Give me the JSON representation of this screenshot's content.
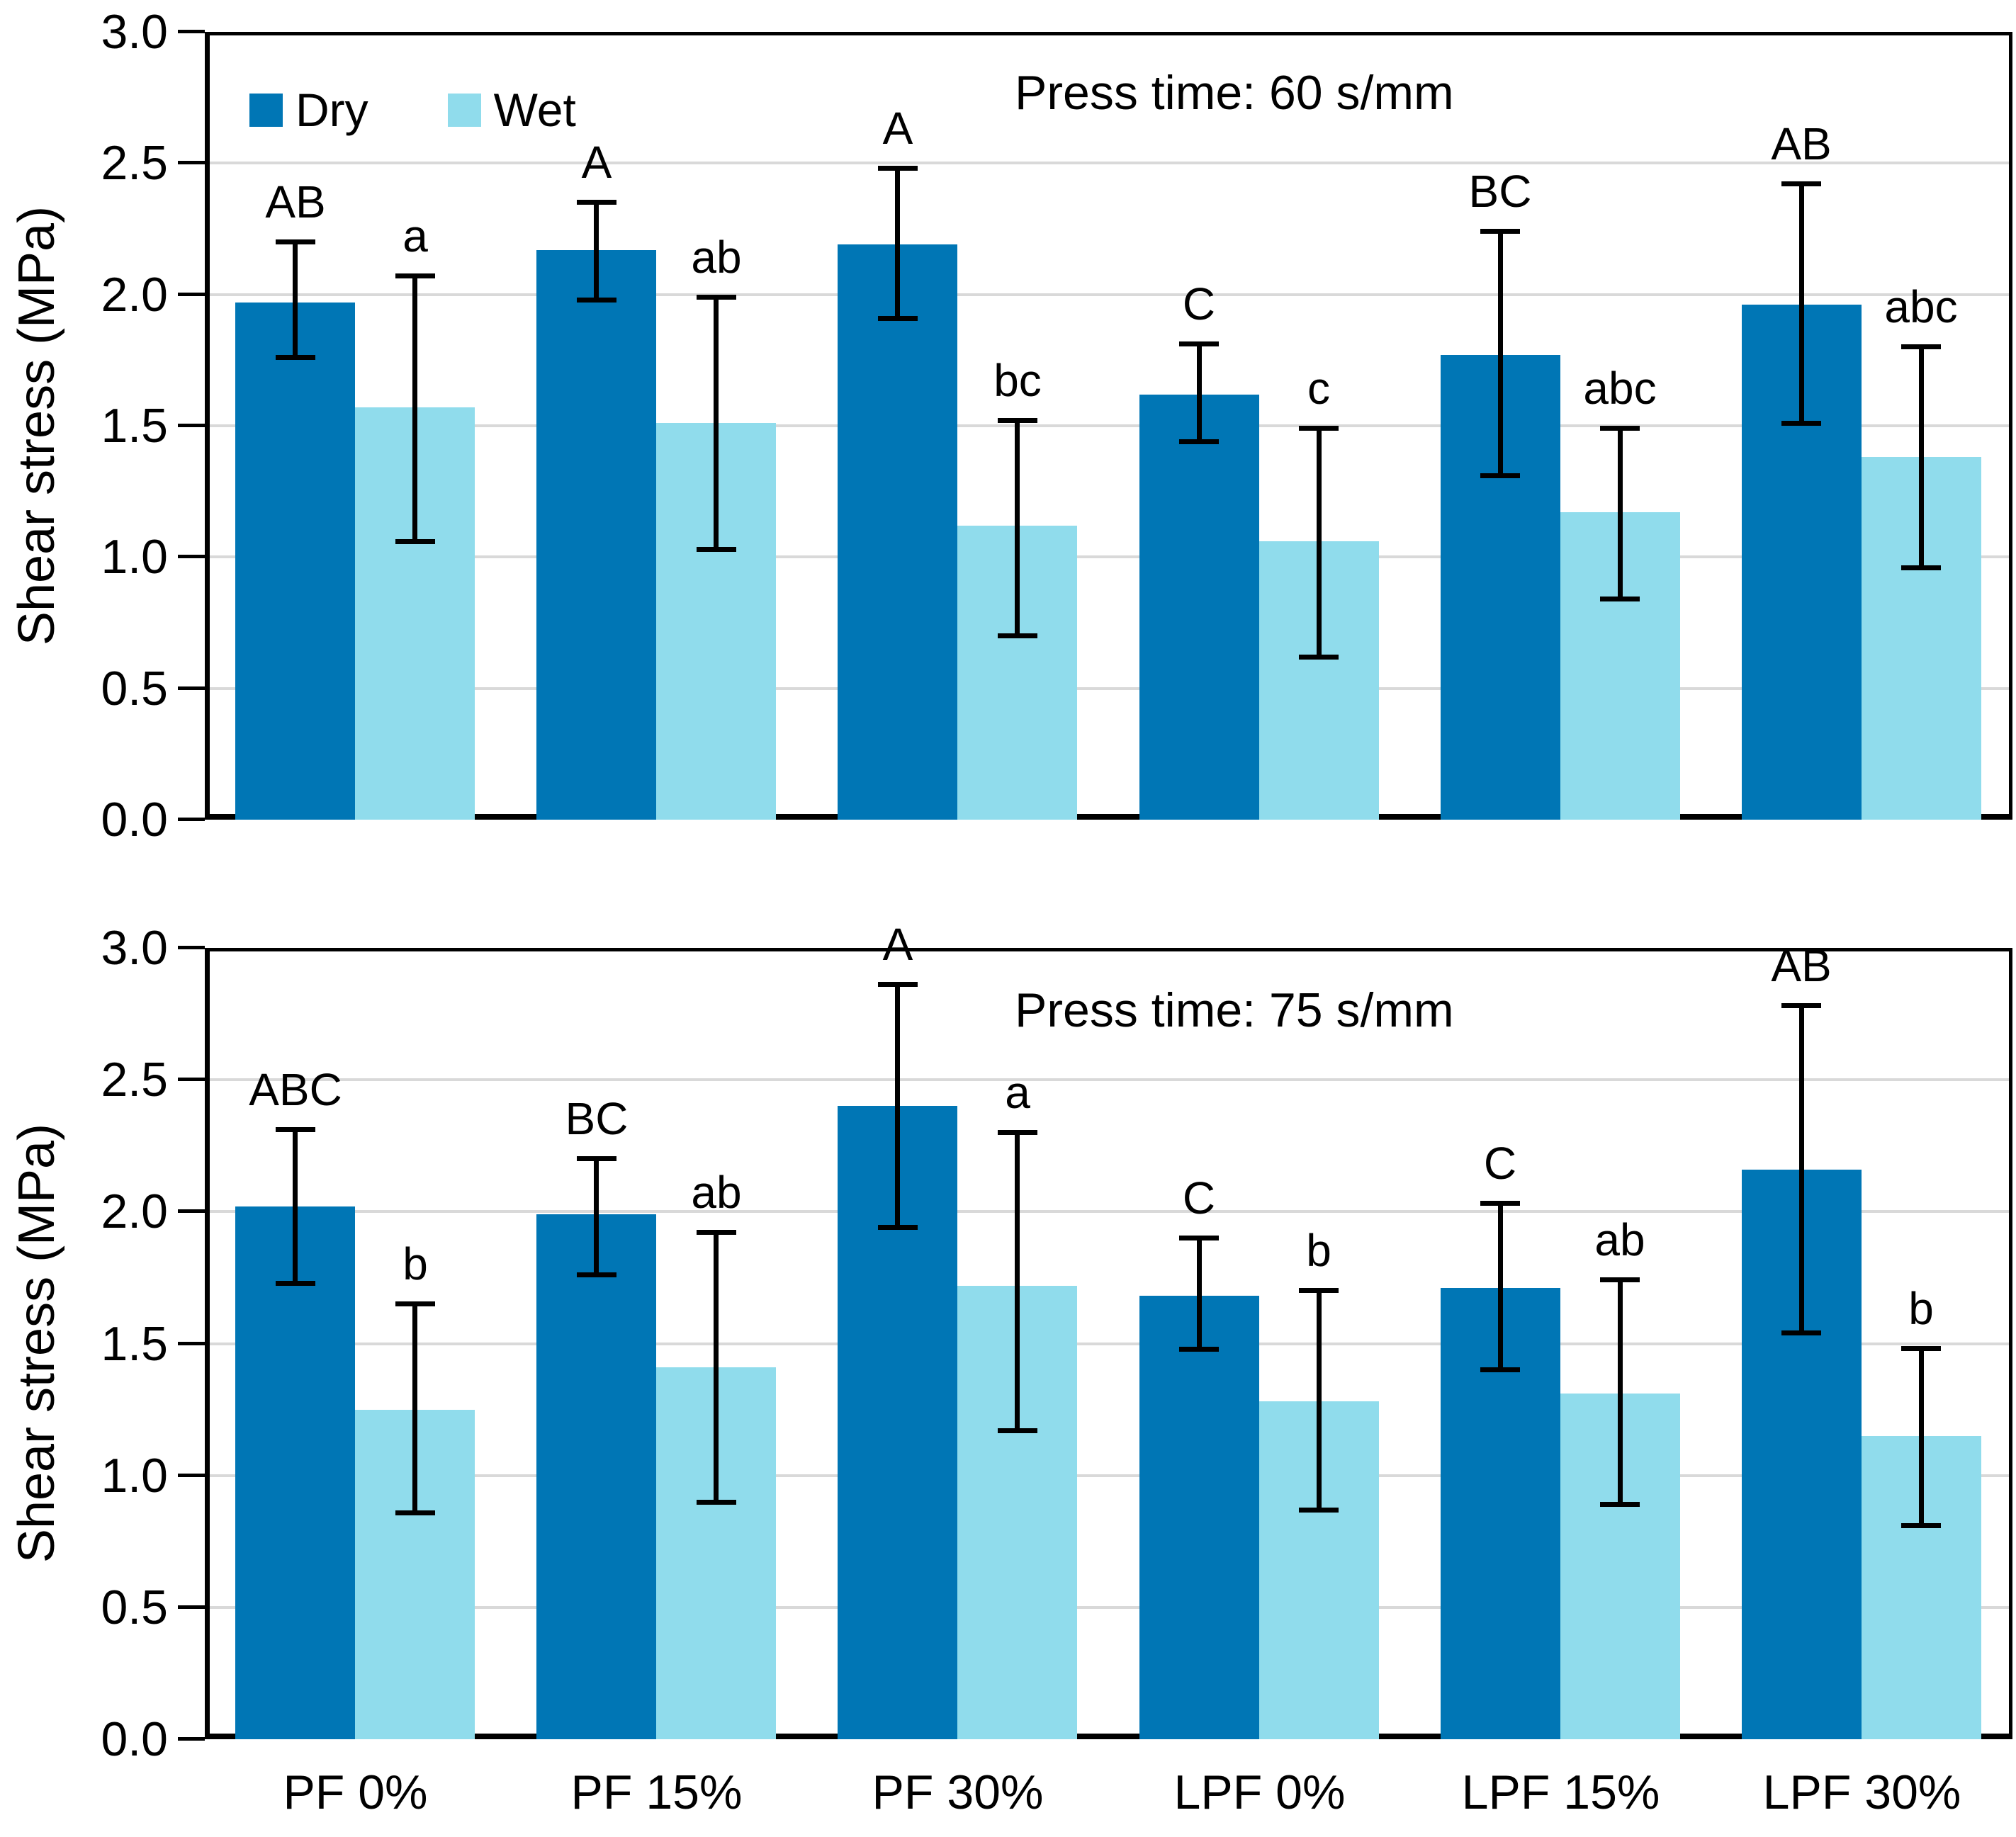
{
  "figure": {
    "ylabel": "Shear stress (MPa)",
    "legend": {
      "dry": "Dry",
      "wet": "Wet"
    },
    "colors": {
      "dry": "#0076B5",
      "wet": "#90DCEC",
      "gridline": "#D9D9D9",
      "axis": "#000000",
      "background": "#FFFFFF"
    },
    "yticks": [
      "3.0",
      "2.5",
      "2.0",
      "1.5",
      "1.0",
      "0.5",
      "0.0"
    ]
  },
  "chart_data": [
    {
      "type": "bar",
      "title": "Press time: 60 s/mm",
      "ylabel": "Shear stress (MPa)",
      "xlabel": "",
      "ylim": [
        0,
        3
      ],
      "grid": "horizontal",
      "legend_position": "top-left-inside",
      "categories": [
        "PF 0%",
        "PF 15%",
        "PF 30%",
        "LPF 0%",
        "LPF 15%",
        "LPF 30%"
      ],
      "series": [
        {
          "name": "Dry",
          "values": [
            1.97,
            2.17,
            2.19,
            1.62,
            1.77,
            1.96
          ],
          "err_low": [
            1.75,
            1.97,
            1.9,
            1.43,
            1.3,
            1.5
          ],
          "err_high": [
            2.21,
            2.36,
            2.49,
            1.82,
            2.25,
            2.43
          ],
          "letters": [
            "AB",
            "A",
            "A",
            "C",
            "BC",
            "AB"
          ]
        },
        {
          "name": "Wet",
          "values": [
            1.57,
            1.51,
            1.12,
            1.06,
            1.17,
            1.38
          ],
          "err_low": [
            1.05,
            1.02,
            0.69,
            0.61,
            0.83,
            0.95
          ],
          "err_high": [
            2.08,
            2.0,
            1.53,
            1.5,
            1.5,
            1.81
          ],
          "letters": [
            "a",
            "ab",
            "bc",
            "c",
            "abc",
            "abc"
          ]
        }
      ]
    },
    {
      "type": "bar",
      "title": "Press time: 75 s/mm",
      "ylabel": "Shear stress (MPa)",
      "xlabel": "",
      "ylim": [
        0,
        3
      ],
      "grid": "horizontal",
      "legend_position": "none",
      "categories": [
        "PF 0%",
        "PF 15%",
        "PF 30%",
        "LPF 0%",
        "LPF 15%",
        "LPF 30%"
      ],
      "series": [
        {
          "name": "Dry",
          "values": [
            2.02,
            1.99,
            2.4,
            1.68,
            1.71,
            2.16
          ],
          "err_low": [
            1.72,
            1.75,
            1.93,
            1.47,
            1.39,
            1.53
          ],
          "err_high": [
            2.32,
            2.21,
            2.87,
            1.91,
            2.04,
            2.79
          ],
          "letters": [
            "ABC",
            "BC",
            "A",
            "C",
            "C",
            "AB"
          ]
        },
        {
          "name": "Wet",
          "values": [
            1.25,
            1.41,
            1.72,
            1.28,
            1.31,
            1.15
          ],
          "err_low": [
            0.85,
            0.89,
            1.16,
            0.86,
            0.88,
            0.8
          ],
          "err_high": [
            1.66,
            1.93,
            2.31,
            1.71,
            1.75,
            1.49
          ],
          "letters": [
            "b",
            "ab",
            "a",
            "b",
            "ab",
            "b"
          ]
        }
      ]
    }
  ]
}
